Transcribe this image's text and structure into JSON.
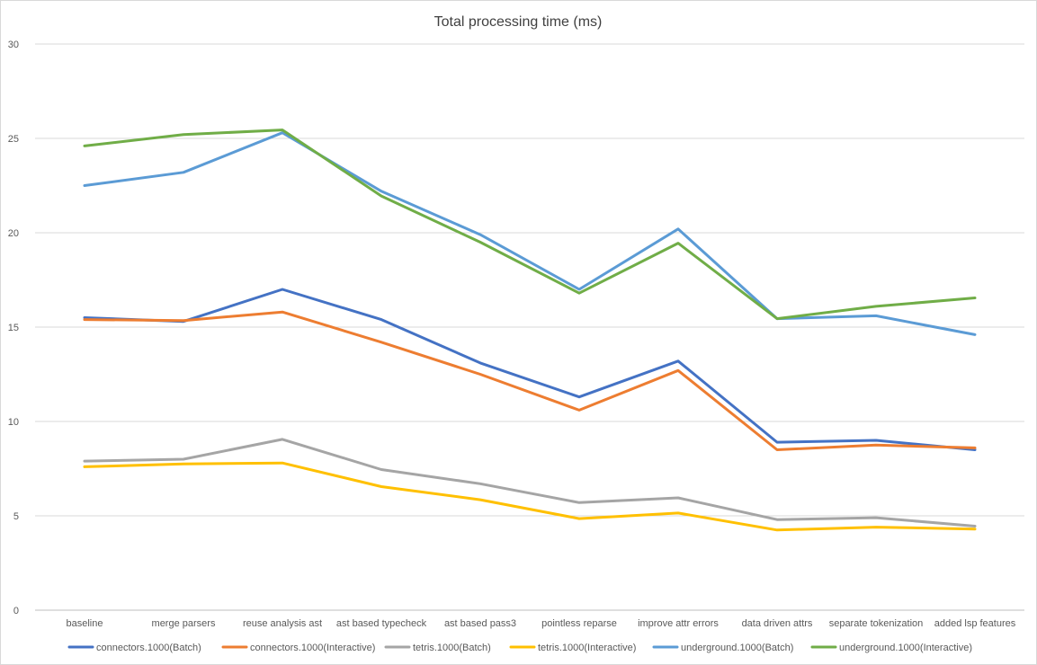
{
  "chart_data": {
    "type": "line",
    "title": "Total processing time (ms)",
    "xlabel": "",
    "ylabel": "",
    "ylim": [
      0,
      30
    ],
    "yticks": [
      0,
      5,
      10,
      15,
      20,
      25,
      30
    ],
    "grid": true,
    "legend_position": "bottom",
    "categories": [
      "baseline",
      "merge parsers",
      "reuse analysis ast",
      "ast based typecheck",
      "ast based pass3",
      "pointless reparse",
      "improve attr errors",
      "data driven attrs",
      "separate tokenization",
      "added lsp features"
    ],
    "series": [
      {
        "name": "connectors.1000(Batch)",
        "color": "#4472c4",
        "values": [
          15.5,
          15.3,
          17.0,
          15.4,
          13.1,
          11.3,
          13.2,
          8.9,
          9.0,
          8.5
        ]
      },
      {
        "name": "connectors.1000(Interactive)",
        "color": "#ed7d31",
        "values": [
          15.4,
          15.35,
          15.8,
          14.2,
          12.5,
          10.6,
          12.7,
          8.5,
          8.75,
          8.6
        ]
      },
      {
        "name": "tetris.1000(Batch)",
        "color": "#a5a5a5",
        "values": [
          7.9,
          8.0,
          9.05,
          7.45,
          6.7,
          5.7,
          5.95,
          4.8,
          4.9,
          4.45
        ]
      },
      {
        "name": "tetris.1000(Interactive)",
        "color": "#ffc000",
        "values": [
          7.6,
          7.75,
          7.8,
          6.55,
          5.85,
          4.85,
          5.15,
          4.25,
          4.4,
          4.3
        ]
      },
      {
        "name": "underground.1000(Batch)",
        "color": "#5b9bd5",
        "values": [
          22.5,
          23.2,
          25.3,
          22.2,
          19.9,
          17.0,
          20.2,
          15.45,
          15.6,
          14.6
        ]
      },
      {
        "name": "underground.1000(Interactive)",
        "color": "#70ad47",
        "values": [
          24.6,
          25.2,
          25.45,
          21.95,
          19.5,
          16.8,
          19.45,
          15.45,
          16.1,
          16.55
        ]
      }
    ]
  }
}
